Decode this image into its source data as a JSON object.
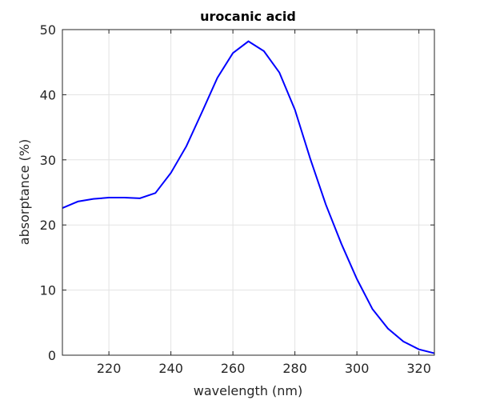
{
  "chart_data": {
    "type": "line",
    "title": "urocanic acid",
    "xlabel": "wavelength (nm)",
    "ylabel": "absorptance (%)",
    "x": [
      205,
      210,
      215,
      220,
      225,
      230,
      235,
      240,
      245,
      250,
      255,
      260,
      265,
      270,
      275,
      280,
      285,
      290,
      295,
      300,
      305,
      310,
      315,
      320,
      325
    ],
    "series": [
      {
        "name": "urocanic acid",
        "color": "#0000ff",
        "values": [
          22.6,
          23.6,
          24.0,
          24.2,
          24.2,
          24.1,
          24.9,
          28.0,
          32.1,
          37.3,
          42.6,
          46.4,
          48.2,
          46.7,
          43.4,
          37.7,
          30.1,
          23.1,
          17.1,
          11.7,
          7.1,
          4.1,
          2.1,
          0.9,
          0.3
        ]
      }
    ],
    "xlim": [
      205,
      325
    ],
    "xticks": [
      220,
      240,
      260,
      280,
      300,
      320
    ],
    "ylim": [
      0,
      50
    ],
    "yticks": [
      0,
      10,
      20,
      30,
      40,
      50
    ],
    "grid": true
  }
}
